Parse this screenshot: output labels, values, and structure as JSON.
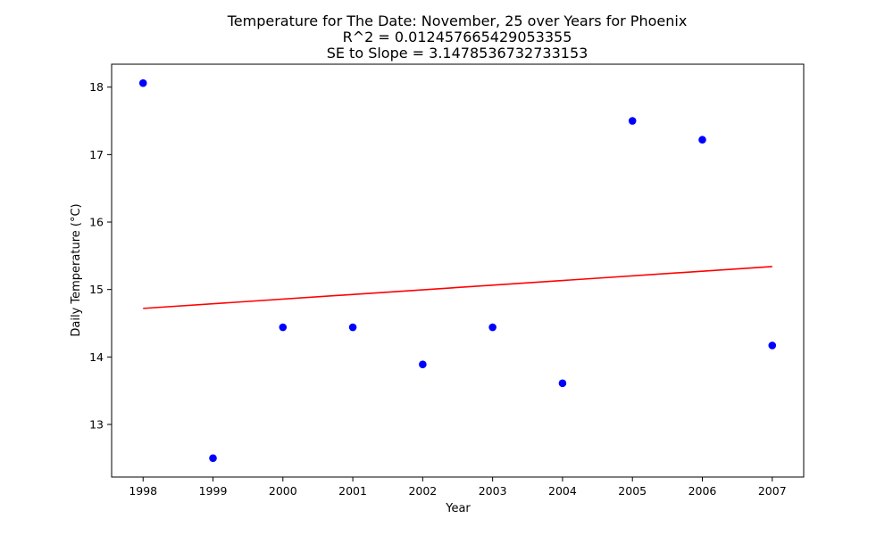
{
  "chart_data": {
    "type": "scatter",
    "title": [
      "Temperature for The Date: November, 25 over Years for Phoenix",
      "R^2 = 0.012457665429053355",
      "SE to Slope = 3.1478536732733153"
    ],
    "xlabel": "Year",
    "ylabel": "Daily Temperature (°C)",
    "x": [
      1998,
      1999,
      2000,
      2001,
      2002,
      2003,
      2004,
      2005,
      2006,
      2007
    ],
    "y": [
      18.06,
      12.5,
      14.44,
      14.44,
      13.89,
      14.44,
      13.61,
      17.5,
      17.22,
      14.17
    ],
    "trendline": {
      "x": [
        1998,
        2007
      ],
      "y": [
        14.72,
        15.34
      ]
    },
    "xticks": [
      1998,
      1999,
      2000,
      2001,
      2002,
      2003,
      2004,
      2005,
      2006,
      2007
    ],
    "yticks": [
      13,
      14,
      15,
      16,
      17,
      18
    ],
    "xlim": [
      1997.55,
      2007.45
    ],
    "ylim": [
      12.22,
      18.34
    ],
    "grid": false,
    "colors": {
      "points": "#0000ff",
      "trendline": "#ff0000"
    }
  }
}
